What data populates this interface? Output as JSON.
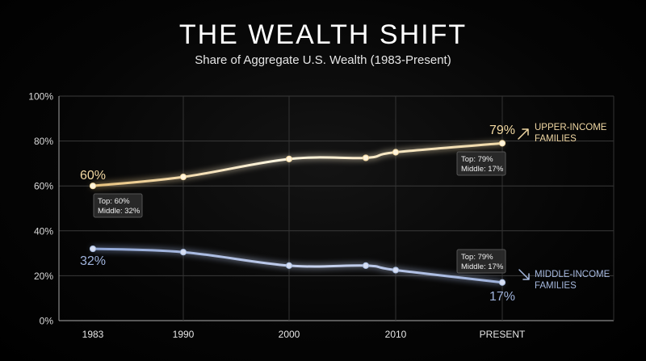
{
  "chart_data": {
    "type": "line",
    "title": "THE WEALTH SHIFT",
    "subtitle": "Share of Aggregate U.S. Wealth (1983-Present)",
    "x_tick_labels": [
      "1983",
      "1990",
      "2000",
      "2010",
      "PRESENT"
    ],
    "y_tick_labels": [
      "0%",
      "20%",
      "40%",
      "60%",
      "80%",
      "100%"
    ],
    "ylim": [
      0,
      100
    ],
    "grid": true,
    "series": [
      {
        "name": "UPPER-INCOME FAMILIES",
        "color": "#f3d9a2",
        "x": [
          "1983",
          "1990",
          "2000",
          "2007",
          "2010",
          "PRESENT"
        ],
        "values": [
          60,
          64,
          72,
          72.5,
          75,
          79
        ]
      },
      {
        "name": "MIDDLE-INCOME FAMILIES",
        "color": "#a9bde0",
        "x": [
          "1983",
          "1990",
          "2000",
          "2007",
          "2010",
          "PRESENT"
        ],
        "values": [
          32,
          30.5,
          24.5,
          24.5,
          22.5,
          17
        ]
      }
    ],
    "point_labels": [
      {
        "series": 0,
        "text": "60%"
      },
      {
        "series": 0,
        "text": "79%"
      },
      {
        "series": 1,
        "text": "32%"
      },
      {
        "series": 1,
        "text": "17%"
      }
    ],
    "tooltips": [
      {
        "top": "Top: 60%",
        "middle": "Middle: 32%"
      },
      {
        "top": "Top: 79%",
        "middle": "Middle: 17%"
      },
      {
        "top": "Top: 79%",
        "middle": "Middle: 17%"
      }
    ],
    "legend_labels": [
      {
        "line1": "UPPER-INCOME",
        "line2": "FAMILIES"
      },
      {
        "line1": "MIDDLE-INCOME",
        "line2": "FAMILIES"
      }
    ]
  }
}
